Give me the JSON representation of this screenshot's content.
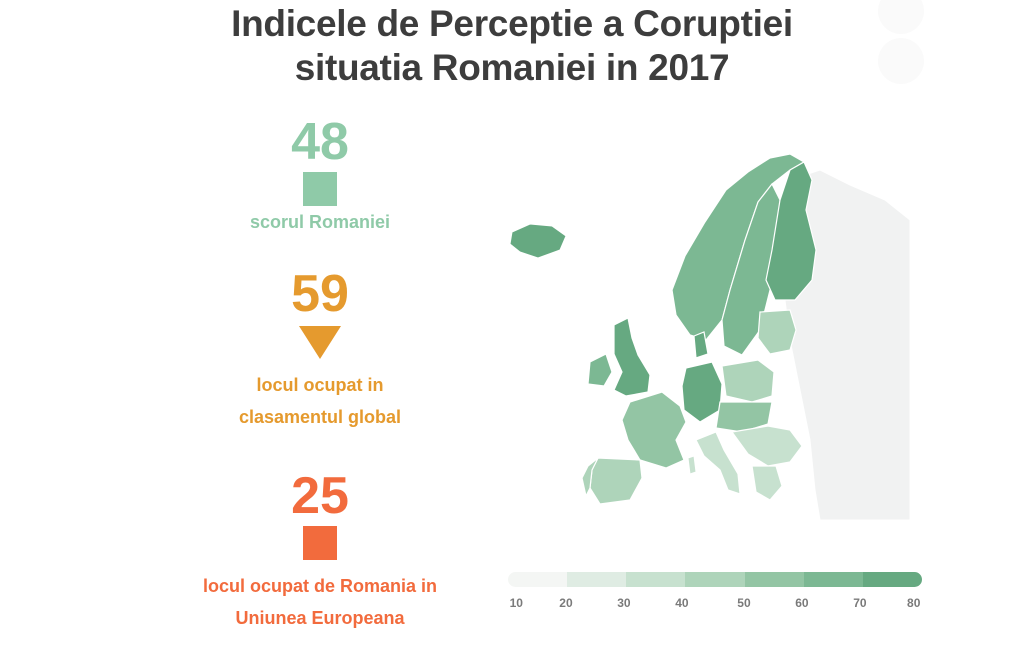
{
  "title": {
    "line1": "Indicele de Perceptie a Coruptiei",
    "line2": "situatia Romaniei in 2017"
  },
  "stats": {
    "score": {
      "value": "48",
      "label": "scorul Romaniei",
      "color": "#8fcaa8"
    },
    "global_rank": {
      "value": "59",
      "label_line1": "locul ocupat in",
      "label_line2": "clasamentul global",
      "color": "#e59a2e"
    },
    "eu_rank": {
      "value": "25",
      "label_line1": "locul ocupat de Romania in",
      "label_line2": "Uniunea Europeana",
      "color": "#f26b3d"
    }
  },
  "legend": {
    "ticks": [
      "10",
      "20",
      "30",
      "40",
      "50",
      "60",
      "70",
      "80"
    ],
    "colors": [
      "#f4f6f4",
      "#dfece3",
      "#c7e1cf",
      "#aed4ba",
      "#93c5a4",
      "#7cb893",
      "#66a981"
    ]
  },
  "map": {
    "colors": {
      "land": "#f1f2f2",
      "very_high": "#66a981",
      "high": "#7cb893",
      "mid_high": "#93c5a4",
      "mid": "#aed4ba",
      "low": "#c7e1cf",
      "lower": "#dfece3"
    }
  }
}
